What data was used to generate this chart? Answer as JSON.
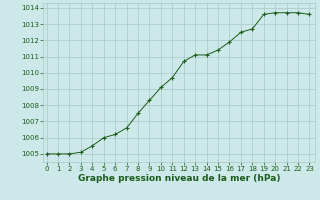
{
  "x": [
    0,
    1,
    2,
    3,
    4,
    5,
    6,
    7,
    8,
    9,
    10,
    11,
    12,
    13,
    14,
    15,
    16,
    17,
    18,
    19,
    20,
    21,
    22,
    23
  ],
  "y": [
    1005.0,
    1005.0,
    1005.0,
    1005.1,
    1005.5,
    1006.0,
    1006.2,
    1006.6,
    1007.5,
    1008.3,
    1009.1,
    1009.7,
    1010.7,
    1011.1,
    1011.1,
    1011.4,
    1011.9,
    1012.5,
    1012.7,
    1013.6,
    1013.7,
    1013.7,
    1013.7,
    1013.6
  ],
  "line_color": "#1a5c1a",
  "marker": "+",
  "marker_size": 3.5,
  "marker_color": "#1a5c1a",
  "bg_color": "#cce8e8",
  "grid_color": "#aac8c8",
  "xlabel": "Graphe pression niveau de la mer (hPa)",
  "xlabel_fontsize": 6.5,
  "xlabel_color": "#1a5c1a",
  "ytick_min": 1005,
  "ytick_max": 1014,
  "ytick_step": 1,
  "xtick_labels": [
    "0",
    "1",
    "2",
    "3",
    "4",
    "5",
    "6",
    "7",
    "8",
    "9",
    "10",
    "11",
    "12",
    "13",
    "14",
    "15",
    "16",
    "17",
    "18",
    "19",
    "20",
    "21",
    "22",
    "23"
  ],
  "tick_fontsize": 5.0,
  "tick_color": "#1a5c1a",
  "ylim_min": 1004.5,
  "ylim_max": 1014.3,
  "xlim_min": -0.3,
  "xlim_max": 23.5
}
